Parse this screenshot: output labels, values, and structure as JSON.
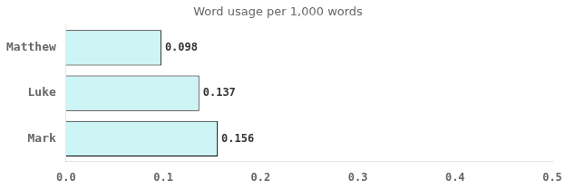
{
  "chart_data": {
    "type": "bar",
    "orientation": "horizontal",
    "title": "Word usage per 1,000 words",
    "categories": [
      "Matthew",
      "Luke",
      "Mark"
    ],
    "values": [
      0.098,
      0.137,
      0.156
    ],
    "color": "#cef5f5",
    "xlim": [
      0,
      0.5
    ],
    "xticks": [
      {
        "value": 0,
        "label": "0.0"
      },
      0.1,
      0.2,
      0.3,
      0.4,
      0.5
    ],
    "grid": false,
    "data_labels": true
  }
}
